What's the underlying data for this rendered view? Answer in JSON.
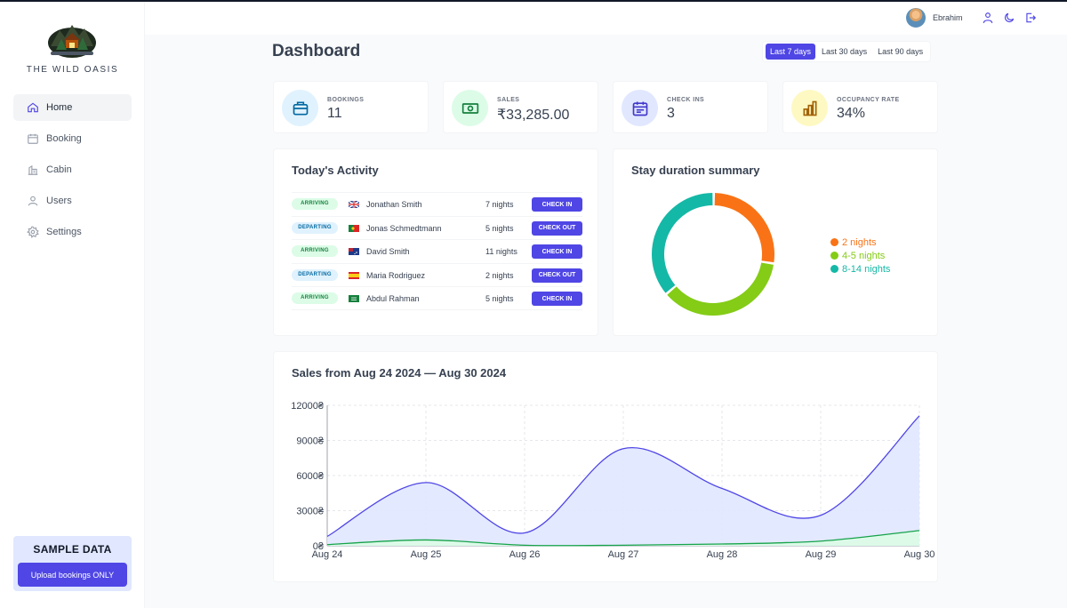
{
  "brand": "THE WILD OASIS",
  "nav": [
    {
      "label": "Home",
      "icon": "home-icon",
      "active": true
    },
    {
      "label": "Booking",
      "icon": "calendar-icon",
      "active": false
    },
    {
      "label": "Cabin",
      "icon": "cabin-icon",
      "active": false
    },
    {
      "label": "Users",
      "icon": "users-icon",
      "active": false
    },
    {
      "label": "Settings",
      "icon": "gear-icon",
      "active": false
    }
  ],
  "sample": {
    "title": "SAMPLE DATA",
    "button": "Upload bookings ONLY"
  },
  "header": {
    "username": "Ebrahim"
  },
  "dashboard": {
    "title": "Dashboard",
    "filters": [
      "Last 7 days",
      "Last 30 days",
      "Last 90 days"
    ],
    "active_filter": 0
  },
  "stats": [
    {
      "label": "BOOKINGS",
      "value": "11",
      "icon": "briefcase-icon",
      "bg": "#e0f2fe",
      "color": "#0369a1"
    },
    {
      "label": "SALES",
      "value": "₹33,285.00",
      "icon": "banknote-icon",
      "bg": "#dcfce7",
      "color": "#15803d"
    },
    {
      "label": "CHECK INS",
      "value": "3",
      "icon": "calendar-days-icon",
      "bg": "#e0e7ff",
      "color": "#4338ca"
    },
    {
      "label": "OCCUPANCY RATE",
      "value": "34%",
      "icon": "bar-chart-icon",
      "bg": "#fef9c3",
      "color": "#a16207"
    }
  ],
  "activity": {
    "title": "Today's Activity",
    "rows": [
      {
        "status": "ARRIVING",
        "guest": "Jonathan Smith",
        "nights": "7 nights",
        "action": "CHECK IN",
        "flag": "gb"
      },
      {
        "status": "DEPARTING",
        "guest": "Jonas Schmedtmann",
        "nights": "5 nights",
        "action": "CHECK OUT",
        "flag": "pt"
      },
      {
        "status": "ARRIVING",
        "guest": "David Smith",
        "nights": "11 nights",
        "action": "CHECK IN",
        "flag": "au"
      },
      {
        "status": "DEPARTING",
        "guest": "Maria Rodriguez",
        "nights": "2 nights",
        "action": "CHECK OUT",
        "flag": "es"
      },
      {
        "status": "ARRIVING",
        "guest": "Abdul Rahman",
        "nights": "5 nights",
        "action": "CHECK IN",
        "flag": "sa"
      }
    ]
  },
  "chart_data": [
    {
      "type": "pie",
      "title": "Stay duration summary",
      "donut": true,
      "legend": "right",
      "slices": [
        {
          "label": "2 nights",
          "value": 3,
          "color": "#f97316"
        },
        {
          "label": "4-5 nights",
          "value": 4,
          "color": "#84cc16"
        },
        {
          "label": "8-14 nights",
          "value": 4,
          "color": "#14b8a6"
        }
      ]
    },
    {
      "type": "area",
      "title": "Sales from Aug 24 2024 — Aug 30 2024",
      "categories": [
        "Aug 24",
        "Aug 25",
        "Aug 26",
        "Aug 27",
        "Aug 28",
        "Aug 29",
        "Aug 30"
      ],
      "y_ticks": [
        "0₴",
        "3000₴",
        "6000₴",
        "9000₴",
        "12000₴"
      ],
      "ylim": [
        0,
        12000
      ],
      "grid": true,
      "series": [
        {
          "values": [
            800,
            5400,
            1100,
            8300,
            4900,
            2600,
            11100
          ],
          "stroke": "#4f46e5",
          "fill": "#e0e7ff"
        },
        {
          "values": [
            100,
            500,
            50,
            50,
            150,
            400,
            1300
          ],
          "stroke": "#16a34a",
          "fill": "#dcfce7"
        }
      ]
    }
  ]
}
